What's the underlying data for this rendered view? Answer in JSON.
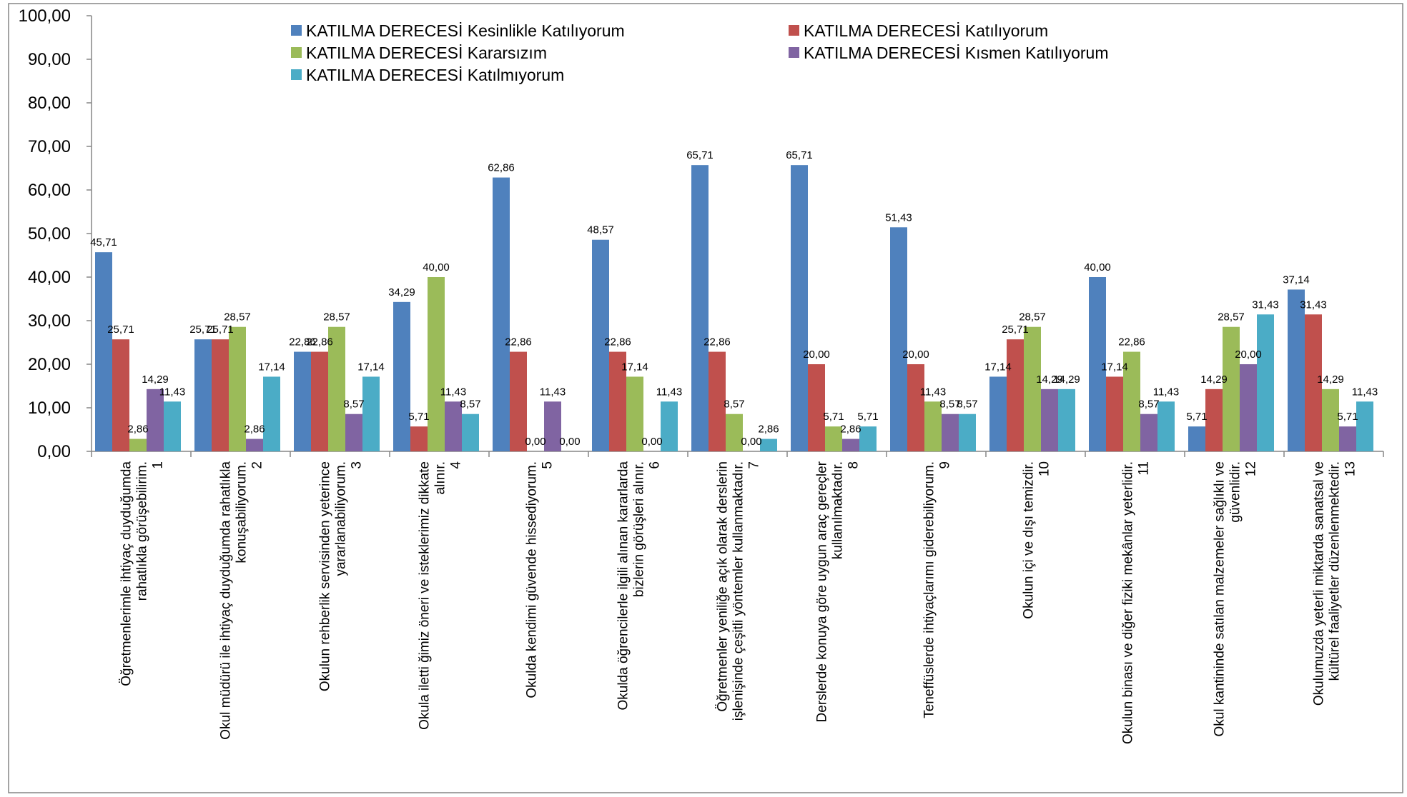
{
  "chart_data": {
    "type": "bar",
    "title": "",
    "xlabel": "",
    "ylabel": "",
    "ylim": [
      0,
      100
    ],
    "yticks": [
      "0,00",
      "10,00",
      "20,00",
      "30,00",
      "40,00",
      "50,00",
      "60,00",
      "70,00",
      "80,00",
      "90,00",
      "100,00"
    ],
    "grid": false,
    "legend_position": "top",
    "categories": [
      {
        "lines": [
          "Öğretmenlerimle ihtiyaç duyduğumda",
          "rahatlıkla görüşebilirim.",
          "1"
        ]
      },
      {
        "lines": [
          "Okul müdürü ile ihtiyaç duyduğumda rahatlıkla",
          "konuşabiliyorum.",
          "2"
        ]
      },
      {
        "lines": [
          "Okulun rehberlik servisinden yeterince",
          "yararlanabiliyorum.",
          "3"
        ]
      },
      {
        "lines": [
          "Okula iletti ğimiz öneri ve isteklerimiz dikkate",
          "alınır.",
          "4"
        ]
      },
      {
        "lines": [
          "Okulda kendimi güvende hissediyorum.",
          "5"
        ]
      },
      {
        "lines": [
          "Okulda öğrencilerle ilgili alınan kararlarda",
          "bizlerin görüşleri alınır.",
          "6"
        ]
      },
      {
        "lines": [
          "Öğretmenler yeniliğe açık olarak derslerin",
          "işlenişinde çeşitli yöntemler kullanmaktadır.",
          "7"
        ]
      },
      {
        "lines": [
          "Derslerde konuya göre uygun araç gereçler",
          "kullanılmaktadır.",
          "8"
        ]
      },
      {
        "lines": [
          "Teneffüslerde ihtiyaçlarımı giderebiliyorum.",
          "9"
        ]
      },
      {
        "lines": [
          "Okulun içi ve dışı temizdir.",
          "10"
        ]
      },
      {
        "lines": [
          "Okulun binası ve diğer fiziki mekânlar yeterlidir.",
          "11"
        ]
      },
      {
        "lines": [
          "Okul kantininde satılan malzemeler sağlıklı ve",
          "güvenlidir.",
          "12"
        ]
      },
      {
        "lines": [
          "Okulumuzda yeterli miktarda sanatsal ve",
          "kültürel faaliyetler düzenlenmektedir.",
          "13"
        ]
      }
    ],
    "series": [
      {
        "name": "KATILMA DERECESİ Kesinlikle Katılıyorum",
        "color": "#4F81BD",
        "values": [
          45.71,
          25.71,
          22.86,
          34.29,
          62.86,
          48.57,
          65.71,
          65.71,
          51.43,
          17.14,
          40.0,
          5.71,
          37.14
        ],
        "labels": [
          "45,71",
          "25,71",
          "22,86",
          "34,29",
          "62,86",
          "48,57",
          "65,71",
          "65,71",
          "51,43",
          "17,14",
          "40,00",
          "5,71",
          "37,14"
        ]
      },
      {
        "name": "KATILMA DERECESİ Katılıyorum",
        "color": "#C0504D",
        "values": [
          25.71,
          25.71,
          22.86,
          5.71,
          22.86,
          22.86,
          22.86,
          20.0,
          20.0,
          25.71,
          17.14,
          14.29,
          31.43
        ],
        "labels": [
          "25,71",
          "25,71",
          "22,86",
          "5,71",
          "22,86",
          "22,86",
          "22,86",
          "20,00",
          "20,00",
          "25,71",
          "17,14",
          "14,29",
          "31,43"
        ]
      },
      {
        "name": "KATILMA DERECESİ Kararsızım",
        "color": "#9BBB59",
        "values": [
          2.86,
          28.57,
          28.57,
          40.0,
          0.0,
          17.14,
          8.57,
          5.71,
          11.43,
          28.57,
          22.86,
          28.57,
          14.29
        ],
        "labels": [
          "2,86",
          "28,57",
          "28,57",
          "40,00",
          "0,00",
          "17,14",
          "8,57",
          "5,71",
          "11,43",
          "28,57",
          "22,86",
          "28,57",
          "14,29"
        ]
      },
      {
        "name": "KATILMA DERECESİ Kısmen Katılıyorum",
        "color": "#8064A2",
        "values": [
          14.29,
          2.86,
          8.57,
          11.43,
          11.43,
          0.0,
          0.0,
          2.86,
          8.57,
          14.29,
          8.57,
          20.0,
          5.71
        ],
        "labels": [
          "14,29",
          "2,86",
          "8,57",
          "11,43",
          "11,43",
          "0,00",
          "0,00",
          "2,86",
          "8,57",
          "14,29",
          "8,57",
          "20,00",
          "5,71"
        ]
      },
      {
        "name": "KATILMA DERECESİ Katılmıyorum",
        "color": "#4BACC6",
        "values": [
          11.43,
          17.14,
          17.14,
          8.57,
          0.0,
          11.43,
          2.86,
          5.71,
          8.57,
          14.29,
          11.43,
          31.43,
          11.43
        ],
        "labels": [
          "11,43",
          "17,14",
          "17,14",
          "8,57",
          "0,00",
          "11,43",
          "2,86",
          "5,71",
          "8,57",
          "14,29",
          "11,43",
          "31,43",
          "11,43"
        ]
      }
    ]
  }
}
